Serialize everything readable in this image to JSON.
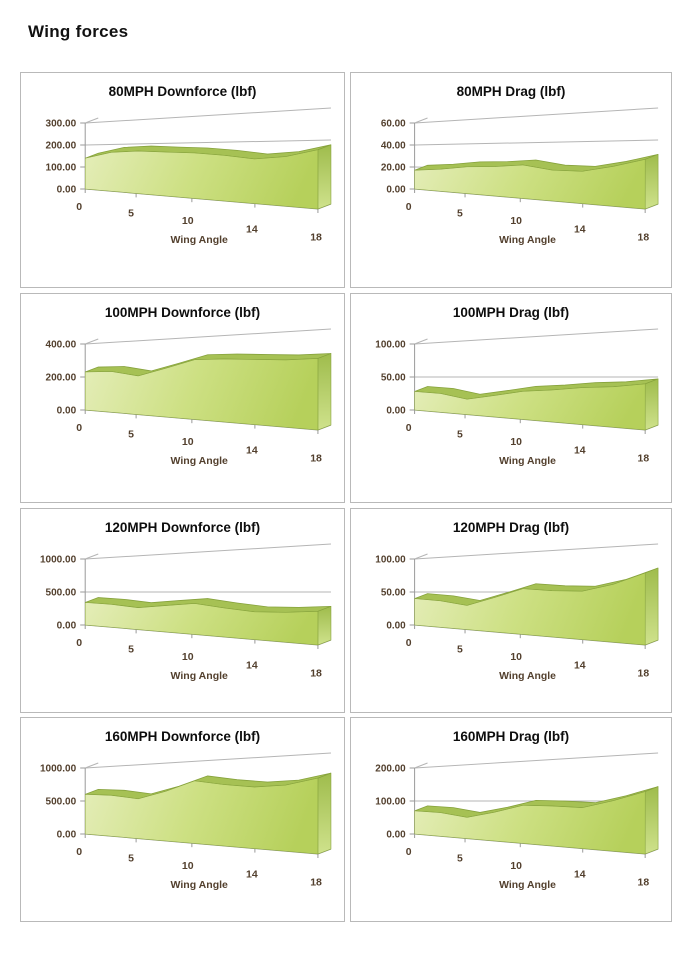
{
  "page": {
    "heading": "Wing forces"
  },
  "shared": {
    "colors": {
      "area_light": "#e4edb8",
      "area_mid": "#cde083",
      "area_dark": "#b6d05b",
      "ribbon": "#a6c154",
      "ribbon_edge": "#86a23c",
      "side_top": "#9fbc4c",
      "side_bottom": "#cfe28c",
      "gridline": "#b5b5b5",
      "axis_line": "#9a9a9a",
      "tick_text": "#53402e",
      "panel_border": "#b9b9b9"
    }
  },
  "chart_data": [
    {
      "type": "area",
      "title": "80MPH Downforce (lbf)",
      "xlabel": "Wing Angle",
      "x_tick_labels": [
        "0",
        "5",
        "10",
        "14",
        "18"
      ],
      "x": [
        0,
        2,
        5,
        8,
        10,
        12,
        14,
        16,
        18
      ],
      "values": [
        140,
        168,
        175,
        172,
        170,
        163,
        152,
        162,
        185
      ],
      "y_ticks": [
        "0.00",
        "100.00",
        "200.00",
        "300.00"
      ],
      "ylim": [
        0,
        300
      ]
    },
    {
      "type": "area",
      "title": "80MPH Drag (lbf)",
      "xlabel": "Wing Angle",
      "x_tick_labels": [
        "0",
        "5",
        "10",
        "14",
        "18"
      ],
      "x": [
        0,
        2,
        5,
        8,
        10,
        12,
        14,
        16,
        18
      ],
      "values": [
        17,
        19,
        22,
        23,
        25,
        22,
        22,
        26,
        31
      ],
      "y_ticks": [
        "0.00",
        "20.00",
        "40.00",
        "60.00"
      ],
      "ylim": [
        0,
        60
      ]
    },
    {
      "type": "area",
      "title": "100MPH Downforce (lbf)",
      "xlabel": "Wing Angle",
      "x_tick_labels": [
        "0",
        "5",
        "10",
        "14",
        "18"
      ],
      "x": [
        0,
        2,
        5,
        8,
        10,
        12,
        14,
        16,
        18
      ],
      "values": [
        230,
        235,
        212,
        255,
        298,
        300,
        296,
        293,
        298
      ],
      "y_ticks": [
        "0.00",
        "200.00",
        "400.00"
      ],
      "ylim": [
        0,
        400
      ]
    },
    {
      "type": "area",
      "title": "100MPH Drag (lbf)",
      "xlabel": "Wing Angle",
      "x_tick_labels": [
        "0",
        "5",
        "10",
        "14",
        "18"
      ],
      "x": [
        0,
        2,
        5,
        8,
        10,
        12,
        14,
        16,
        18
      ],
      "values": [
        28,
        27,
        21,
        28,
        35,
        38,
        42,
        44,
        48
      ],
      "y_ticks": [
        "0.00",
        "50.00",
        "100.00"
      ],
      "ylim": [
        0,
        100
      ]
    },
    {
      "type": "area",
      "title": "120MPH Downforce (lbf)",
      "xlabel": "Wing Angle",
      "x_tick_labels": [
        "0",
        "5",
        "10",
        "14",
        "18"
      ],
      "x": [
        0,
        2,
        5,
        8,
        10,
        12,
        14,
        16,
        18
      ],
      "values": [
        340,
        330,
        300,
        345,
        385,
        345,
        315,
        325,
        350
      ],
      "y_ticks": [
        "0.00",
        "500.00",
        "1000.00"
      ],
      "ylim": [
        0,
        1000
      ]
    },
    {
      "type": "area",
      "title": "120MPH Drag (lbf)",
      "xlabel": "Wing Angle",
      "x_tick_labels": [
        "0",
        "5",
        "10",
        "14",
        "18"
      ],
      "x": [
        0,
        2,
        5,
        8,
        10,
        12,
        14,
        16,
        18
      ],
      "values": [
        40,
        38,
        33,
        45,
        57,
        55,
        55,
        63,
        75
      ],
      "y_ticks": [
        "0.00",
        "50.00",
        "100.00"
      ],
      "ylim": [
        0,
        100
      ]
    },
    {
      "type": "area",
      "title": "160MPH Downforce (lbf)",
      "xlabel": "Wing Angle",
      "x_tick_labels": [
        "0",
        "5",
        "10",
        "14",
        "18"
      ],
      "x": [
        0,
        2,
        5,
        8,
        10,
        12,
        14,
        16,
        18
      ],
      "values": [
        600,
        590,
        545,
        650,
        780,
        730,
        700,
        720,
        790
      ],
      "y_ticks": [
        "0.00",
        "500.00",
        "1000.00"
      ],
      "ylim": [
        0,
        1000
      ]
    },
    {
      "type": "area",
      "title": "160MPH Drag (lbf)",
      "xlabel": "Wing Angle",
      "x_tick_labels": [
        "0",
        "5",
        "10",
        "14",
        "18"
      ],
      "x": [
        0,
        2,
        5,
        8,
        10,
        12,
        14,
        16,
        18
      ],
      "values": [
        70,
        68,
        58,
        75,
        95,
        95,
        93,
        110,
        130
      ],
      "y_ticks": [
        "0.00",
        "100.00",
        "200.00"
      ],
      "ylim": [
        0,
        200
      ]
    }
  ]
}
